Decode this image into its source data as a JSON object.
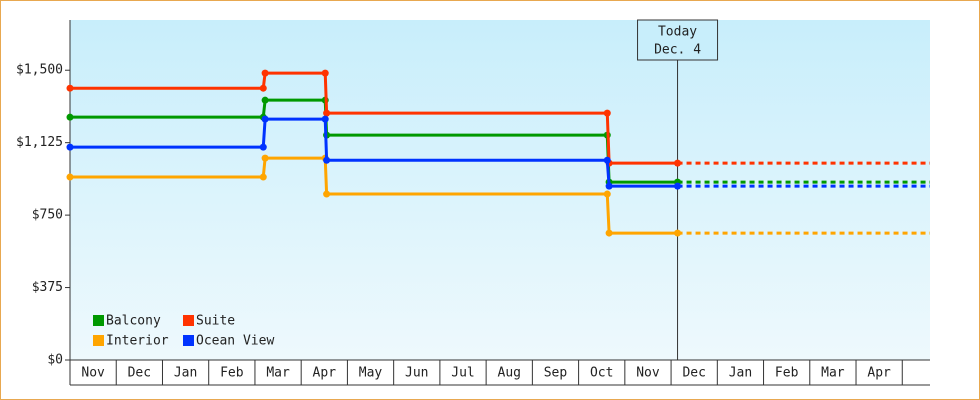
{
  "chart_data": {
    "type": "step-line",
    "xlim": [
      0,
      18.6
    ],
    "xticks": [
      {
        "value": 0.5,
        "label": "Nov"
      },
      {
        "value": 1.5,
        "label": "Dec"
      },
      {
        "value": 2.5,
        "label": "Jan"
      },
      {
        "value": 3.5,
        "label": "Feb"
      },
      {
        "value": 4.5,
        "label": "Mar"
      },
      {
        "value": 5.5,
        "label": "Apr"
      },
      {
        "value": 6.5,
        "label": "May"
      },
      {
        "value": 7.5,
        "label": "Jun"
      },
      {
        "value": 8.5,
        "label": "Jul"
      },
      {
        "value": 9.5,
        "label": "Aug"
      },
      {
        "value": 10.5,
        "label": "Sep"
      },
      {
        "value": 11.5,
        "label": "Oct"
      },
      {
        "value": 12.5,
        "label": "Nov"
      },
      {
        "value": 13.5,
        "label": "Dec"
      },
      {
        "value": 14.5,
        "label": "Jan"
      },
      {
        "value": 15.5,
        "label": "Feb"
      },
      {
        "value": 16.5,
        "label": "Mar"
      },
      {
        "value": 17.5,
        "label": "Apr"
      }
    ],
    "ylim": [
      0,
      1760
    ],
    "yticks": [
      {
        "value": 0,
        "label": "$0"
      },
      {
        "value": 375,
        "label": "$375"
      },
      {
        "value": 750,
        "label": "$750"
      },
      {
        "value": 1125,
        "label": "$1,125"
      },
      {
        "value": 1500,
        "label": "$1,500"
      }
    ],
    "series": [
      {
        "name": "Balcony",
        "color": "#009900",
        "x": [
          0,
          4.18,
          4.22,
          5.52,
          5.55,
          11.62,
          11.66,
          13.14
        ],
        "values": [
          1257,
          1257,
          1345,
          1345,
          1164,
          1164,
          921,
          921
        ]
      },
      {
        "name": "Suite",
        "color": "#ff3300",
        "x": [
          0,
          4.18,
          4.22,
          5.52,
          5.55,
          11.62,
          11.66,
          13.14
        ],
        "values": [
          1407,
          1407,
          1485,
          1485,
          1278,
          1278,
          1019,
          1019
        ]
      },
      {
        "name": "Interior",
        "color": "#ffa500",
        "x": [
          0,
          4.18,
          4.22,
          5.52,
          5.55,
          11.62,
          11.66,
          13.14
        ],
        "values": [
          947,
          947,
          1045,
          1045,
          859,
          859,
          657,
          657
        ]
      },
      {
        "name": "Ocean View",
        "color": "#0033ff",
        "x": [
          0,
          4.18,
          4.22,
          5.52,
          5.55,
          11.62,
          11.66,
          13.14
        ],
        "values": [
          1102,
          1102,
          1247,
          1247,
          1034,
          1034,
          900,
          900
        ]
      }
    ],
    "annotation": {
      "x": 13.14,
      "lines": [
        "Today",
        "Dec. 4"
      ]
    },
    "projection": true,
    "legend": "bottom-left"
  }
}
